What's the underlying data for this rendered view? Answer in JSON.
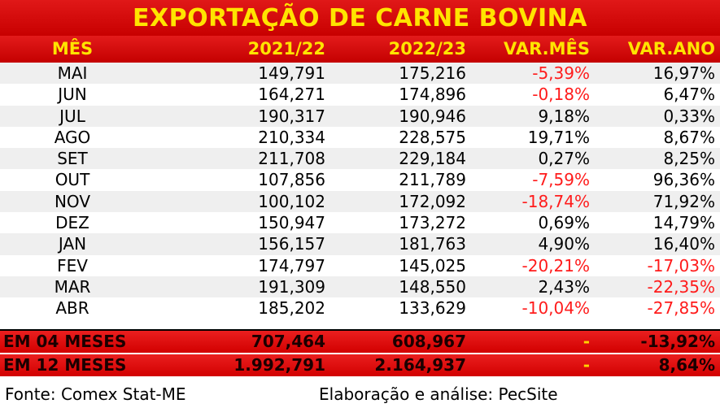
{
  "title": "EXPORTAÇÃO DE CARNE BOVINA",
  "headers": {
    "mes": "MÊS",
    "y1": "2021/22",
    "y2": "2022/23",
    "var_mes": "VAR.MÊS",
    "var_ano": "VAR.ANO"
  },
  "rows": [
    {
      "mes": "MAI",
      "y1": "149,791",
      "y2": "175,216",
      "var_mes": "-5,39%",
      "var_ano": "16,97%"
    },
    {
      "mes": "JUN",
      "y1": "164,271",
      "y2": "174,896",
      "var_mes": "-0,18%",
      "var_ano": "6,47%"
    },
    {
      "mes": "JUL",
      "y1": "190,317",
      "y2": "190,946",
      "var_mes": "9,18%",
      "var_ano": "0,33%"
    },
    {
      "mes": "AGO",
      "y1": "210,334",
      "y2": "228,575",
      "var_mes": "19,71%",
      "var_ano": "8,67%"
    },
    {
      "mes": "SET",
      "y1": "211,708",
      "y2": "229,184",
      "var_mes": "0,27%",
      "var_ano": "8,25%"
    },
    {
      "mes": "OUT",
      "y1": "107,856",
      "y2": "211,789",
      "var_mes": "-7,59%",
      "var_ano": "96,36%"
    },
    {
      "mes": "NOV",
      "y1": "100,102",
      "y2": "172,092",
      "var_mes": "-18,74%",
      "var_ano": "71,92%"
    },
    {
      "mes": "DEZ",
      "y1": "150,947",
      "y2": "173,272",
      "var_mes": "0,69%",
      "var_ano": "14,79%"
    },
    {
      "mes": "JAN",
      "y1": "156,157",
      "y2": "181,763",
      "var_mes": "4,90%",
      "var_ano": "16,40%"
    },
    {
      "mes": "FEV",
      "y1": "174,797",
      "y2": "145,025",
      "var_mes": "-20,21%",
      "var_ano": "-17,03%"
    },
    {
      "mes": "MAR",
      "y1": "191,309",
      "y2": "148,550",
      "var_mes": "2,43%",
      "var_ano": "-22,35%"
    },
    {
      "mes": "ABR",
      "y1": "185,202",
      "y2": "133,629",
      "var_mes": "-10,04%",
      "var_ano": "-27,85%"
    }
  ],
  "totals": [
    {
      "mes": "EM 04 MESES",
      "y1": "707,464",
      "y2": "608,967",
      "var_mes": "-",
      "var_ano": "-13,92%"
    },
    {
      "mes": "EM 12 MESES",
      "y1": "1.992,791",
      "y2": "2.164,937",
      "var_mes": "-",
      "var_ano": "8,64%"
    }
  ],
  "footer": {
    "source": "Fonte: Comex Stat-ME",
    "credit": "Elaboração e análise: PecSite"
  },
  "colors": {
    "header_bg": "#d10a0a",
    "header_text": "#ffe400",
    "negative": "#ff1b1b",
    "row_shade": "#efefef"
  }
}
